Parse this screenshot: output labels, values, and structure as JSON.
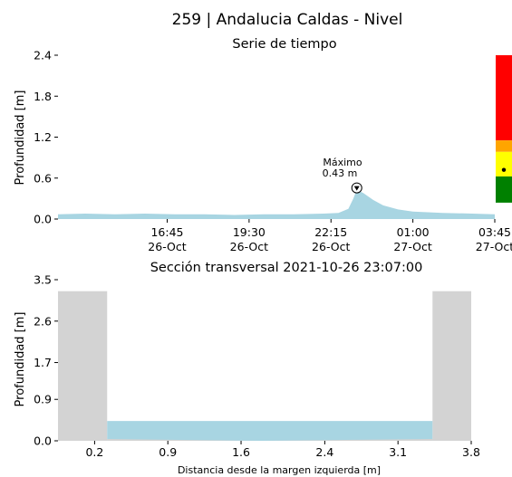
{
  "header": {
    "title": "259 | Andalucia Caldas - Nivel",
    "subtitle": "Serie de tiempo"
  },
  "chart_data": [
    {
      "type": "area",
      "name": "time-series",
      "ylabel": "Profundidad [m]",
      "ylim": [
        0,
        2.4
      ],
      "yticks": [
        {
          "value": 0.0,
          "label": "0.0"
        },
        {
          "value": 0.6,
          "label": "0.6"
        },
        {
          "value": 1.2,
          "label": "1.2"
        },
        {
          "value": 1.8,
          "label": "1.8"
        },
        {
          "value": 2.4,
          "label": "2.4"
        }
      ],
      "xlim": [
        "2021-10-26 13:05",
        "2021-10-27 03:45"
      ],
      "xticks": [
        {
          "time": "2021-10-26 16:45",
          "label": "16:45",
          "date": "26-Oct"
        },
        {
          "time": "2021-10-26 19:30",
          "label": "19:30",
          "date": "26-Oct"
        },
        {
          "time": "2021-10-26 22:15",
          "label": "22:15",
          "date": "26-Oct"
        },
        {
          "time": "2021-10-27 01:00",
          "label": "01:00",
          "date": "27-Oct"
        },
        {
          "time": "2021-10-27 03:45",
          "label": "03:45",
          "date": "27-Oct"
        }
      ],
      "x": [
        "2021-10-26 13:05",
        "2021-10-26 14:00",
        "2021-10-26 15:00",
        "2021-10-26 16:00",
        "2021-10-26 17:00",
        "2021-10-26 18:00",
        "2021-10-26 19:00",
        "2021-10-26 20:00",
        "2021-10-26 21:00",
        "2021-10-26 22:00",
        "2021-10-26 22:30",
        "2021-10-26 22:50",
        "2021-10-26 23:00",
        "2021-10-26 23:07",
        "2021-10-26 23:20",
        "2021-10-26 23:40",
        "2021-10-27 00:00",
        "2021-10-27 00:30",
        "2021-10-27 01:00",
        "2021-10-27 02:00",
        "2021-10-27 03:00",
        "2021-10-27 03:45"
      ],
      "values": [
        0.07,
        0.08,
        0.07,
        0.08,
        0.07,
        0.07,
        0.06,
        0.07,
        0.07,
        0.08,
        0.09,
        0.15,
        0.3,
        0.43,
        0.38,
        0.28,
        0.2,
        0.14,
        0.11,
        0.09,
        0.08,
        0.07
      ],
      "annotation": {
        "time": "2021-10-26 23:07",
        "value": 0.43,
        "label_line1": "Máximo",
        "label_line2": "0.43 m"
      },
      "fill_color": "#a8d5e2"
    },
    {
      "type": "area",
      "name": "cross-section",
      "title": "Sección transversal 2021-10-26 23:07:00",
      "xlabel": "Distancia desde la margen izquierda [m]",
      "ylabel": "Profundidad [m]",
      "ylim": [
        0,
        3.5
      ],
      "xlim": [
        -0.15,
        3.8
      ],
      "yticks": [
        {
          "value": 0.0,
          "label": "0.0"
        },
        {
          "value": 0.9,
          "label": "0.9"
        },
        {
          "value": 1.7,
          "label": "1.7"
        },
        {
          "value": 2.6,
          "label": "2.6"
        },
        {
          "value": 3.5,
          "label": "3.5"
        }
      ],
      "xticks": [
        {
          "value": 0.2,
          "label": "0.2"
        },
        {
          "value": 0.9,
          "label": "0.9"
        },
        {
          "value": 1.6,
          "label": "1.6"
        },
        {
          "value": 2.4,
          "label": "2.4"
        },
        {
          "value": 3.1,
          "label": "3.1"
        },
        {
          "value": 3.8,
          "label": "3.8"
        }
      ],
      "banks": [
        {
          "x0": -0.15,
          "x1": 0.32,
          "height": 3.25
        },
        {
          "x0": 3.43,
          "x1": 3.8,
          "height": 3.25
        }
      ],
      "water": {
        "x0": 0.32,
        "x1": 3.43,
        "level": 0.43
      },
      "bed": {
        "x": [
          0.32,
          1.0,
          1.8,
          2.6,
          3.43
        ],
        "y": [
          0.04,
          0.02,
          0.0,
          0.02,
          0.04
        ]
      },
      "bank_color": "#d3d3d3",
      "water_color": "#a8d5e2"
    }
  ],
  "level_bar": {
    "segments": [
      {
        "color": "#ff0000",
        "from": 0.48,
        "to": 1.0
      },
      {
        "color": "#ffa500",
        "from": 0.41,
        "to": 0.48
      },
      {
        "color": "#ffff00",
        "from": 0.26,
        "to": 0.41
      },
      {
        "color": "#008000",
        "from": 0.1,
        "to": 0.26
      }
    ],
    "marker_level": 0.3
  }
}
